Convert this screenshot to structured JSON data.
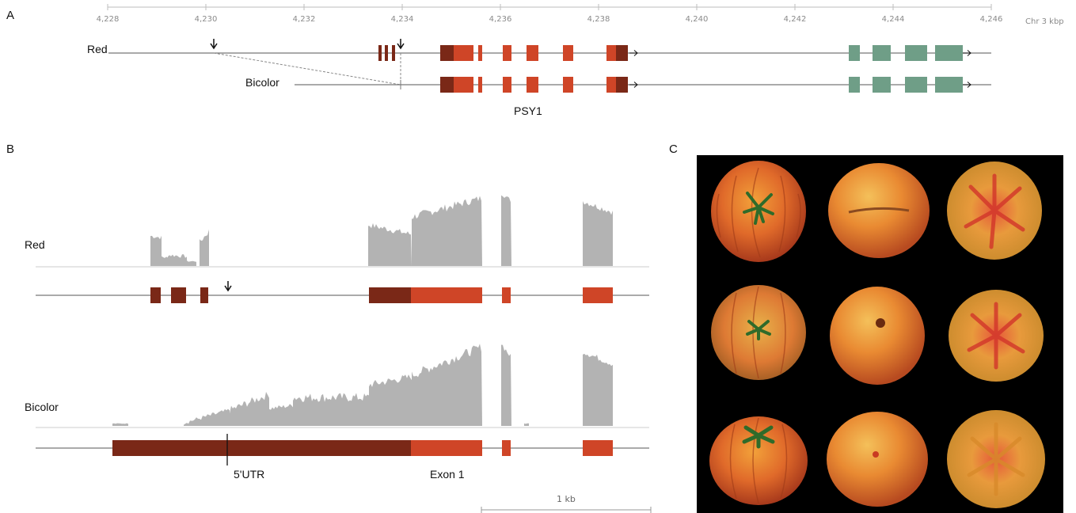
{
  "panel_a": {
    "letter": "A",
    "axis_unit": "Chr 3 kbp",
    "ticks": [
      "4,228",
      "4,230",
      "4,232",
      "4,234",
      "4,236",
      "4,238",
      "4,240",
      "4,242",
      "4,244",
      "4,246"
    ],
    "red_label": "Red",
    "bicolor_label": "Bicolor",
    "gene_label": "PSY1"
  },
  "panel_b": {
    "letter": "B",
    "red_label": "Red",
    "bicolor_label": "Bicolor",
    "utr_label": "5'UTR",
    "exon_label": "Exon 1",
    "scale_label": "1 kb"
  },
  "panel_c": {
    "letter": "C",
    "rows": 3,
    "columns": 3
  },
  "colors": {
    "utr_exon": "#7a2817",
    "coding_exon": "#cf4527",
    "neighbor_gene": "#6f9e87",
    "coverage": "#b3b3b3",
    "intron_line": "#777777"
  }
}
